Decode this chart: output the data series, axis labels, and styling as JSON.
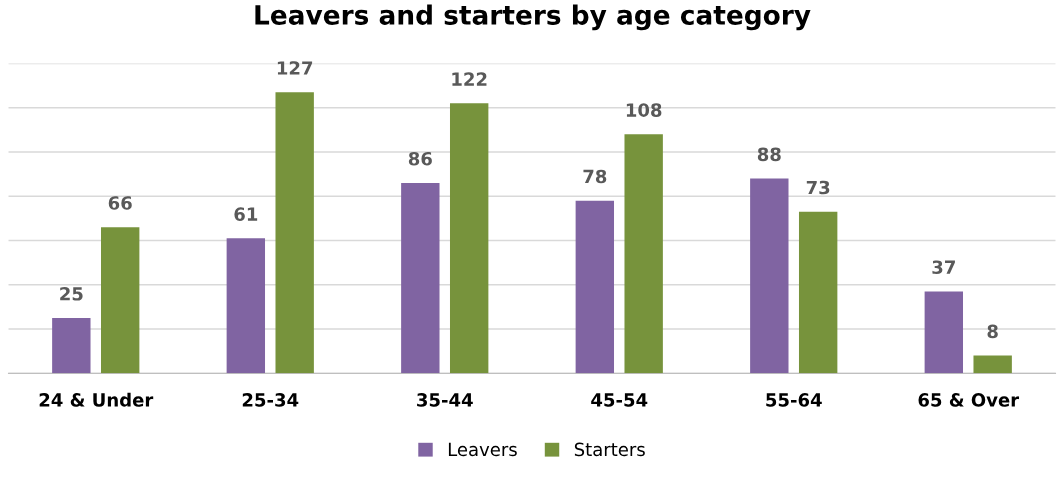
{
  "chart_data": {
    "type": "bar",
    "title": "Leavers and starters by age category",
    "categories": [
      "24 & Under",
      "25-34",
      "35-44",
      "45-54",
      "55-64",
      "65 & Over"
    ],
    "series": [
      {
        "name": "Leavers",
        "color": "#8064a2",
        "values": [
          25,
          61,
          86,
          78,
          88,
          37
        ]
      },
      {
        "name": "Starters",
        "color": "#77933c",
        "values": [
          66,
          127,
          122,
          108,
          73,
          8
        ]
      }
    ],
    "ylim": [
      0,
      140
    ],
    "yticks": [
      0,
      20,
      40,
      60,
      80,
      100,
      120,
      140
    ],
    "tick_labels": "x",
    "grid": "y",
    "legend": "bottom",
    "data_labels": true
  }
}
